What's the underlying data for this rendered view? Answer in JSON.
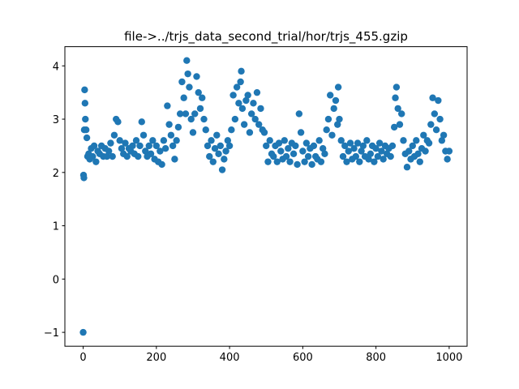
{
  "chart_data": {
    "type": "scatter",
    "title": "file->../trjs_data_second_trial/hor/trjs_455.gzip",
    "color": "#1f77b4",
    "x": [
      0,
      1,
      2,
      3,
      4,
      5,
      6,
      8,
      10,
      12,
      15,
      18,
      22,
      26,
      30,
      35,
      40,
      45,
      50,
      55,
      60,
      65,
      70,
      75,
      80,
      85,
      90,
      95,
      100,
      105,
      110,
      115,
      120,
      125,
      130,
      135,
      140,
      145,
      150,
      155,
      160,
      165,
      170,
      175,
      180,
      185,
      190,
      195,
      200,
      205,
      210,
      215,
      220,
      225,
      230,
      235,
      240,
      245,
      250,
      255,
      260,
      265,
      270,
      275,
      280,
      283,
      286,
      290,
      295,
      300,
      305,
      310,
      315,
      320,
      325,
      330,
      335,
      340,
      345,
      350,
      355,
      360,
      365,
      370,
      375,
      380,
      385,
      390,
      395,
      400,
      405,
      410,
      415,
      420,
      425,
      430,
      432,
      435,
      440,
      445,
      450,
      455,
      460,
      465,
      470,
      475,
      480,
      485,
      490,
      495,
      500,
      505,
      510,
      515,
      520,
      525,
      530,
      535,
      540,
      545,
      550,
      555,
      560,
      565,
      570,
      575,
      580,
      585,
      590,
      595,
      600,
      605,
      610,
      615,
      620,
      625,
      630,
      635,
      640,
      645,
      650,
      655,
      660,
      665,
      670,
      675,
      680,
      685,
      690,
      695,
      697,
      700,
      705,
      710,
      715,
      720,
      725,
      730,
      735,
      740,
      745,
      750,
      755,
      760,
      765,
      770,
      775,
      780,
      785,
      790,
      795,
      800,
      805,
      810,
      815,
      820,
      825,
      830,
      835,
      840,
      845,
      850,
      853,
      856,
      860,
      865,
      870,
      875,
      880,
      885,
      890,
      895,
      900,
      905,
      910,
      915,
      920,
      925,
      930,
      935,
      940,
      945,
      950,
      955,
      960,
      965,
      970,
      975,
      980,
      985,
      990,
      995,
      1000
    ],
    "values": [
      -1.0,
      1.95,
      1.9,
      2.8,
      3.55,
      3.3,
      3.0,
      2.8,
      2.65,
      2.3,
      2.35,
      2.25,
      2.45,
      2.3,
      2.5,
      2.2,
      2.4,
      2.35,
      2.5,
      2.3,
      2.45,
      2.3,
      2.4,
      2.55,
      2.3,
      2.7,
      3.0,
      2.95,
      2.6,
      2.45,
      2.35,
      2.55,
      2.3,
      2.45,
      2.4,
      2.5,
      2.35,
      2.6,
      2.3,
      2.5,
      2.95,
      2.7,
      2.4,
      2.3,
      2.5,
      2.35,
      2.6,
      2.25,
      2.5,
      2.2,
      2.4,
      2.15,
      2.6,
      2.45,
      3.25,
      2.9,
      2.7,
      2.5,
      2.25,
      2.6,
      2.85,
      3.1,
      3.7,
      3.4,
      3.1,
      4.1,
      3.85,
      3.6,
      3.0,
      2.75,
      3.1,
      3.8,
      3.5,
      3.2,
      3.4,
      3.0,
      2.8,
      2.5,
      2.3,
      2.6,
      2.2,
      2.45,
      2.7,
      2.35,
      2.5,
      2.05,
      2.25,
      2.4,
      2.6,
      2.5,
      2.8,
      3.45,
      3.0,
      3.6,
      3.3,
      3.7,
      3.9,
      3.2,
      2.9,
      3.35,
      3.45,
      2.75,
      3.1,
      3.3,
      3.0,
      3.5,
      2.9,
      3.2,
      2.8,
      2.75,
      2.5,
      2.2,
      2.6,
      2.35,
      2.3,
      2.5,
      2.2,
      2.55,
      2.4,
      2.25,
      2.6,
      2.3,
      2.45,
      2.2,
      2.55,
      2.35,
      2.5,
      2.15,
      3.1,
      2.75,
      2.4,
      2.2,
      2.55,
      2.3,
      2.45,
      2.15,
      2.5,
      2.3,
      2.25,
      2.6,
      2.2,
      2.45,
      2.35,
      2.8,
      3.0,
      3.45,
      2.7,
      3.2,
      3.35,
      2.9,
      3.6,
      3.0,
      2.6,
      2.3,
      2.5,
      2.2,
      2.4,
      2.55,
      2.25,
      2.45,
      2.3,
      2.55,
      2.2,
      2.4,
      2.5,
      2.3,
      2.6,
      2.25,
      2.35,
      2.5,
      2.2,
      2.45,
      2.3,
      2.55,
      2.4,
      2.25,
      2.5,
      2.35,
      2.45,
      2.3,
      2.5,
      2.85,
      3.4,
      3.6,
      3.2,
      2.9,
      3.1,
      2.6,
      2.35,
      2.1,
      2.4,
      2.25,
      2.5,
      2.3,
      2.6,
      2.35,
      2.2,
      2.45,
      2.7,
      2.4,
      2.6,
      2.55,
      2.9,
      3.4,
      3.1,
      2.8,
      3.35,
      3.0,
      2.6,
      2.7,
      2.4,
      2.25,
      2.4
    ],
    "xlim": [
      -50,
      1049
    ],
    "ylim": [
      -1.26,
      4.36
    ],
    "xticks": [
      0,
      200,
      400,
      600,
      800,
      1000
    ],
    "yticks": [
      {
        "value": -1,
        "label": "−1"
      },
      0,
      1,
      2,
      3,
      4
    ]
  }
}
